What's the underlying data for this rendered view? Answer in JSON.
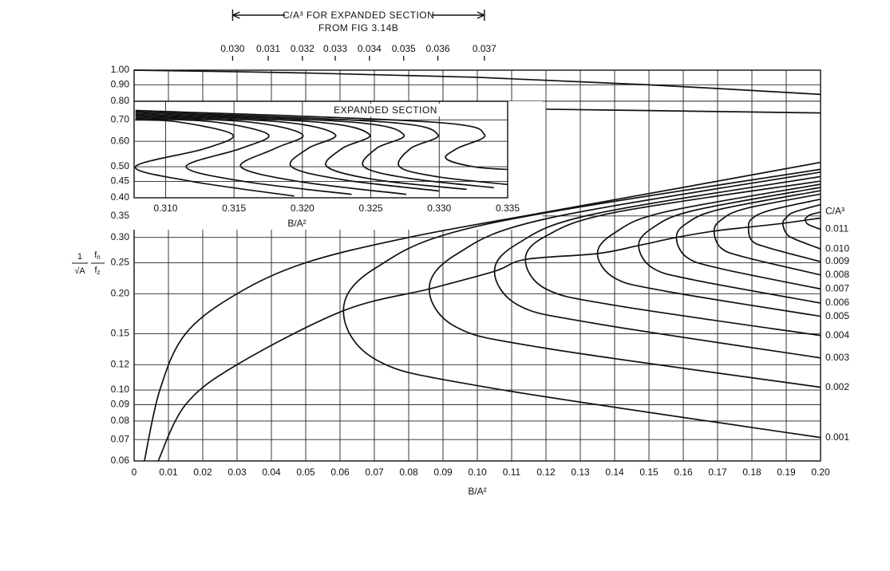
{
  "chart_data": [
    {
      "type": "line",
      "y_scale": "log",
      "grid": true,
      "line_color": "#111",
      "x_label": "B/A²",
      "y_label": {
        "fraction1": {
          "numerator": "1",
          "denominator": "√A"
        },
        "fraction2": {
          "numerator": "f",
          "numerator_sub": "n",
          "denominator": "f",
          "denominator_sub": "z"
        }
      },
      "legend_title": "C/A³",
      "xlim": [
        0,
        0.2
      ],
      "ylim": [
        0.06,
        1
      ],
      "xticks": [
        0,
        0.01,
        0.02,
        0.03,
        0.04,
        0.05,
        0.06,
        0.07,
        0.08,
        0.09,
        {
          "value": 0.1,
          "label": "0.10"
        },
        0.11,
        0.12,
        0.13,
        0.14,
        0.15,
        0.16,
        0.17,
        0.18,
        0.19,
        {
          "value": 0.2,
          "label": "0.20"
        }
      ],
      "yticks": [
        0.06,
        0.07,
        0.08,
        0.09,
        {
          "value": 0.1,
          "label": "0.10"
        },
        0.12,
        0.15,
        {
          "value": 0.2,
          "label": "0.20"
        },
        0.25,
        {
          "value": 0.3,
          "label": "0.30"
        },
        0.35,
        {
          "value": 0.8,
          "label": "0.80"
        },
        {
          "value": 0.9,
          "label": "0.90"
        },
        {
          "value": 1,
          "label": "1.00"
        }
      ],
      "series": [
        {
          "x": [
            0,
            0.05,
            0.1,
            0.15,
            0.2
          ],
          "values": [
            1,
            0.98,
            0.95,
            0.9,
            0.84
          ]
        },
        {
          "x": [
            0.12,
            0.16,
            0.2
          ],
          "values": [
            0.755,
            0.745,
            0.735
          ]
        },
        {
          "x": [
            0.003,
            0.0075,
            0.015,
            0.03,
            0.05,
            0.08,
            0.12,
            0.16,
            0.2
          ],
          "values": [
            0.06,
            0.1,
            0.15,
            0.2,
            0.25,
            0.3,
            0.36,
            0.43,
            0.515
          ]
        },
        {
          "x": [
            0.007,
            0.015,
            0.03,
            0.061,
            0.086,
            0.105,
            0.114,
            0.135,
            0.147,
            0.158,
            0.169,
            0.179,
            0.189,
            0.2
          ],
          "values": [
            0.06,
            0.09,
            0.12,
            0.177,
            0.207,
            0.235,
            0.256,
            0.267,
            0.283,
            0.3,
            0.314,
            0.323,
            0.332,
            0.345
          ]
        },
        {
          "name": "0.001",
          "x": [
            0.2,
            0.1027,
            0.0707,
            0.061,
            0.0707,
            0.1027,
            0.2
          ],
          "values": [
            0.071,
            0.102,
            0.124,
            0.177,
            0.242,
            0.33,
            0.49
          ]
        },
        {
          "name": "0.002",
          "x": [
            0.2,
            0.12,
            0.094,
            0.086,
            0.094,
            0.12,
            0.2
          ],
          "values": [
            0.102,
            0.135,
            0.157,
            0.207,
            0.266,
            0.343,
            0.48
          ]
        },
        {
          "name": "0.003",
          "x": [
            0.2,
            0.1335,
            0.112,
            0.105,
            0.112,
            0.1335,
            0.2
          ],
          "values": [
            0.126,
            0.162,
            0.184,
            0.235,
            0.288,
            0.354,
            0.465
          ]
        },
        {
          "name": "0.004",
          "x": [
            0.2,
            0.14,
            0.12,
            0.114,
            0.12,
            0.14,
            0.2
          ],
          "values": [
            0.148,
            0.184,
            0.207,
            0.256,
            0.303,
            0.359,
            0.45
          ]
        },
        {
          "name": "0.005",
          "x": [
            0.2,
            0.1545,
            0.14,
            0.135,
            0.14,
            0.1545,
            0.2
          ],
          "values": [
            0.17,
            0.204,
            0.224,
            0.267,
            0.31,
            0.36,
            0.44
          ]
        },
        {
          "name": "0.006",
          "x": [
            0.2,
            0.163,
            0.151,
            0.147,
            0.151,
            0.163,
            0.2
          ],
          "values": [
            0.187,
            0.221,
            0.241,
            0.283,
            0.321,
            0.364,
            0.43
          ]
        },
        {
          "name": "0.007",
          "x": [
            0.2,
            0.1706,
            0.161,
            0.158,
            0.161,
            0.1706,
            0.2
          ],
          "values": [
            0.207,
            0.24,
            0.26,
            0.3,
            0.332,
            0.367,
            0.42
          ]
        },
        {
          "name": "0.008",
          "x": [
            0.2,
            0.178,
            0.171,
            0.169,
            0.171,
            0.178,
            0.2
          ],
          "values": [
            0.229,
            0.26,
            0.278,
            0.314,
            0.34,
            0.369,
            0.41
          ]
        },
        {
          "name": "0.009",
          "x": [
            0.2,
            0.185,
            0.18,
            0.179,
            0.18,
            0.185,
            0.2
          ],
          "values": [
            0.252,
            0.278,
            0.293,
            0.323,
            0.343,
            0.364,
            0.395
          ]
        },
        {
          "name": "0.010",
          "x": [
            0.2,
            0.1923,
            0.19,
            0.189,
            0.19,
            0.1923,
            0.2
          ],
          "values": [
            0.276,
            0.297,
            0.309,
            0.332,
            0.346,
            0.36,
            0.38
          ]
        },
        {
          "name": "0.011",
          "x": [
            0.2,
            0.197,
            0.196,
            0.1955,
            0.196,
            0.197,
            0.2
          ],
          "values": [
            0.318,
            0.327,
            0.332,
            0.342,
            0.347,
            0.353,
            0.36
          ]
        }
      ]
    },
    {
      "type": "line",
      "y_scale": "log",
      "grid": true,
      "line_color": "#111",
      "title": "EXPANDED SECTION",
      "x_label": "B/A²",
      "annotation": [
        "C/A³ FOR EXPANDED SECTION",
        "FROM FIG 3.14B"
      ],
      "xlim": [
        0.3077,
        0.335
      ],
      "ylim": [
        0.4,
        0.8
      ],
      "xticks": [
        {
          "value": 0.31,
          "label": "0.310"
        },
        0.315,
        {
          "value": 0.32,
          "label": "0.320"
        },
        0.325,
        {
          "value": 0.33,
          "label": "0.330"
        },
        0.335
      ],
      "yticks": [
        {
          "value": 0.4,
          "label": "0.40"
        },
        0.45,
        {
          "value": 0.5,
          "label": "0.50"
        },
        {
          "value": 0.6,
          "label": "0.60"
        },
        {
          "value": 0.7,
          "label": "0.70"
        }
      ],
      "series": [
        {
          "name": "0.030",
          "x": [
            0.3078,
            0.3109,
            0.3149,
            0.3129,
            0.3078,
            0.3119,
            0.3194
          ],
          "values": [
            0.7,
            0.69,
            0.63,
            0.57,
            0.5,
            0.45,
            0.405
          ]
        },
        {
          "name": "0.031",
          "x": [
            0.3078,
            0.3135,
            0.3175,
            0.3155,
            0.3115,
            0.3157,
            0.3236
          ],
          "values": [
            0.707,
            0.69,
            0.63,
            0.57,
            0.5,
            0.45,
            0.41
          ]
        },
        {
          "name": "0.032",
          "x": [
            0.3078,
            0.316,
            0.32,
            0.318,
            0.3155,
            0.3197,
            0.3276
          ],
          "values": [
            0.714,
            0.69,
            0.63,
            0.57,
            0.5,
            0.45,
            0.41
          ]
        },
        {
          "name": "0.033",
          "x": [
            0.3078,
            0.3184,
            0.3224,
            0.3204,
            0.3192,
            0.323,
            0.33
          ],
          "values": [
            0.721,
            0.69,
            0.63,
            0.57,
            0.5,
            0.455,
            0.42
          ]
        },
        {
          "name": "0.034",
          "x": [
            0.3078,
            0.3209,
            0.3249,
            0.3229,
            0.3218,
            0.3254,
            0.332
          ],
          "values": [
            0.728,
            0.69,
            0.63,
            0.57,
            0.5,
            0.455,
            0.425
          ]
        },
        {
          "name": "0.035",
          "x": [
            0.3078,
            0.3234,
            0.3274,
            0.3254,
            0.3245,
            0.3278,
            0.334
          ],
          "values": [
            0.735,
            0.69,
            0.63,
            0.57,
            0.5,
            0.46,
            0.43
          ]
        },
        {
          "name": "0.036",
          "x": [
            0.3078,
            0.3259,
            0.3299,
            0.3279,
            0.3271,
            0.3299,
            0.335
          ],
          "values": [
            0.742,
            0.69,
            0.63,
            0.57,
            0.5,
            0.465,
            0.44
          ]
        },
        {
          "name": "0.037",
          "x": [
            0.3078,
            0.3293,
            0.3333,
            0.3313,
            0.3305,
            0.3325,
            0.335
          ],
          "values": [
            0.749,
            0.69,
            0.63,
            0.57,
            0.53,
            0.5,
            0.49
          ]
        }
      ]
    }
  ]
}
